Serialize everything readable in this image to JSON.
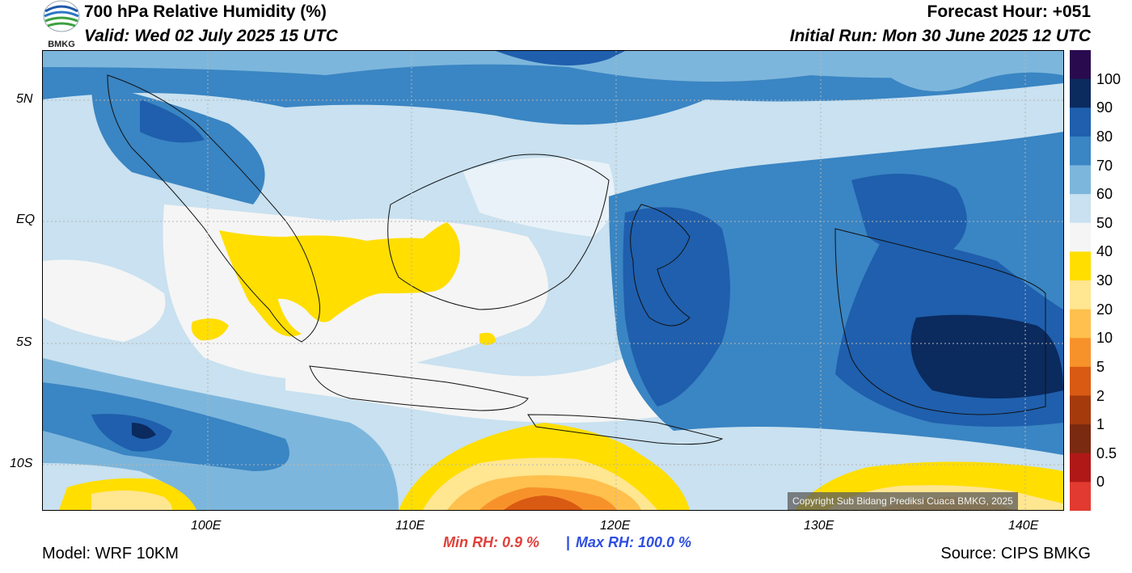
{
  "header": {
    "title": "700 hPa Relative Humidity (%)",
    "valid": "Valid: Wed 02 July 2025 15 UTC",
    "forecast_hour": "Forecast Hour: +051",
    "initial_run": "Initial Run: Mon 30 June 2025 12 UTC",
    "logo_text": "BMKG"
  },
  "map": {
    "lat_ticks": [
      "5N",
      "EQ",
      "5S",
      "10S"
    ],
    "lon_ticks": [
      "100E",
      "110E",
      "120E",
      "130E",
      "140E"
    ],
    "copyright": "Copyright Sub Bidang Prediksi Cuaca BMKG, 2025"
  },
  "colorbar": {
    "labels": [
      "100",
      "90",
      "80",
      "70",
      "60",
      "50",
      "40",
      "30",
      "20",
      "10",
      "5",
      "2",
      "1",
      "0.5",
      "0"
    ],
    "colors": [
      "#2a0a4e",
      "#0b2a5e",
      "#1f5fad",
      "#3a85c3",
      "#7db6dc",
      "#c9e1f0",
      "#f5f5f5",
      "#ffde00",
      "#ffe691",
      "#ffc04d",
      "#f7922b",
      "#d95a12",
      "#a53a0d",
      "#7a2a10",
      "#b01818",
      "#e23a30"
    ]
  },
  "footer": {
    "model": "Model: WRF 10KM",
    "min_rh": "Min RH:   0.9 %",
    "separator": "|",
    "max_rh": "Max RH: 100.0 %",
    "source": "Source: CIPS BMKG"
  },
  "colors": {
    "min_rh": "#e0403a",
    "max_rh": "#2f4fe0",
    "copyright_bg": "#5a5a5a"
  }
}
